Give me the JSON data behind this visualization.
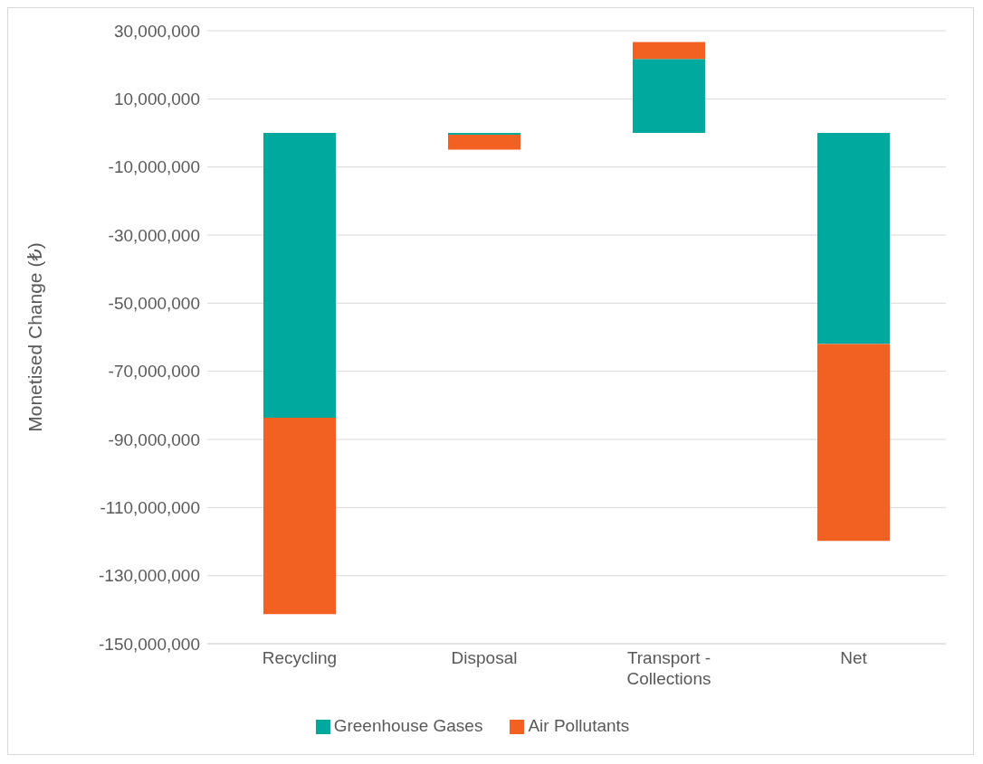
{
  "chart_data": {
    "type": "bar",
    "stacked": true,
    "ylabel": "Monetised Change (₺)",
    "categories": [
      "Recycling",
      "Disposal",
      "Transport - Collections",
      "Net"
    ],
    "series": [
      {
        "name": "Greenhouse Gases",
        "color": "#00a99d",
        "values": [
          -83600000,
          -500000,
          21700000,
          -62000000
        ]
      },
      {
        "name": "Air Pollutants",
        "color": "#f26122",
        "values": [
          -57700000,
          -4400000,
          5000000,
          -57800000
        ]
      }
    ],
    "ylim": [
      -150000000,
      30000000
    ],
    "yticks": [
      {
        "value": -150000000,
        "label": "-150,000,000"
      },
      {
        "value": -130000000,
        "label": "-130,000,000"
      },
      {
        "value": -110000000,
        "label": "-110,000,000"
      },
      {
        "value": -90000000,
        "label": "-90,000,000"
      },
      {
        "value": -70000000,
        "label": "-70,000,000"
      },
      {
        "value": -50000000,
        "label": "-50,000,000"
      },
      {
        "value": -30000000,
        "label": "-30,000,000"
      },
      {
        "value": -10000000,
        "label": "-10,000,000"
      },
      {
        "value": 10000000,
        "label": "10,000,000"
      },
      {
        "value": 30000000,
        "label": "30,000,000"
      }
    ],
    "grid": "y",
    "legend": "bottom"
  }
}
